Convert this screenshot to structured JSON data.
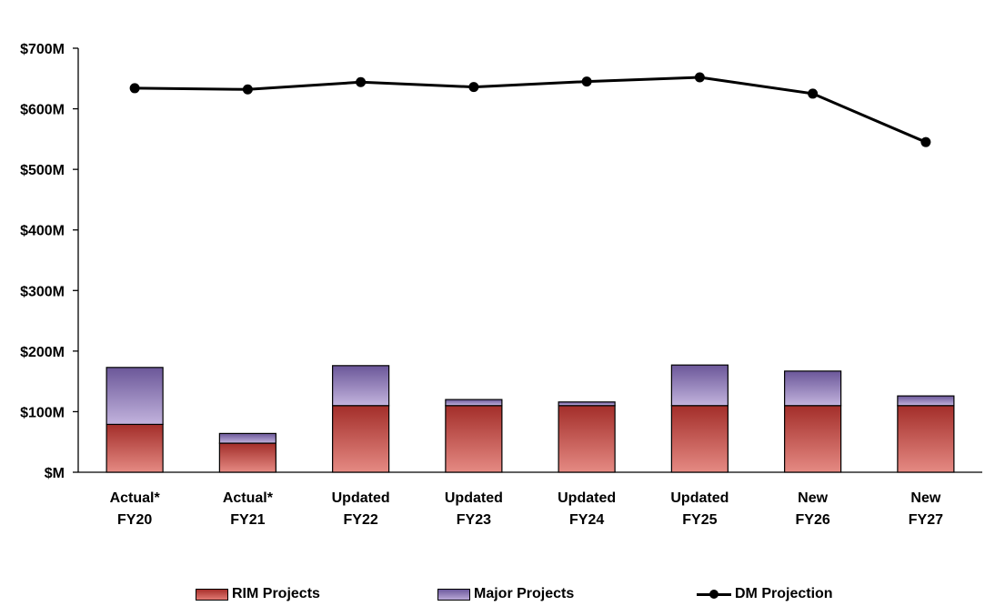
{
  "chart_data": {
    "type": "bar",
    "stacked": true,
    "categories": [
      [
        "Actual*",
        "FY20"
      ],
      [
        "Actual*",
        "FY21"
      ],
      [
        "Updated",
        "FY22"
      ],
      [
        "Updated",
        "FY23"
      ],
      [
        "Updated",
        "FY24"
      ],
      [
        "Updated",
        "FY25"
      ],
      [
        "New",
        "FY26"
      ],
      [
        "New",
        "FY27"
      ]
    ],
    "series": [
      {
        "name": "RIM Projects",
        "kind": "bar",
        "color": "#c0443f",
        "values": [
          79,
          48,
          110,
          110,
          110,
          110,
          110,
          110
        ]
      },
      {
        "name": "Major Projects",
        "kind": "bar",
        "color": "#8c7ab8",
        "values": [
          94,
          16,
          66,
          10,
          6,
          67,
          57,
          16
        ]
      },
      {
        "name": "DM Projection",
        "kind": "line",
        "color": "#000000",
        "values": [
          634,
          632,
          644,
          636,
          645,
          652,
          625,
          545
        ]
      }
    ],
    "yticks": [
      "$M",
      "$100M",
      "$200M",
      "$300M",
      "$400M",
      "$500M",
      "$600M",
      "$700M"
    ],
    "ylim": [
      0,
      700
    ],
    "grid": false,
    "legend_position": "bottom"
  }
}
